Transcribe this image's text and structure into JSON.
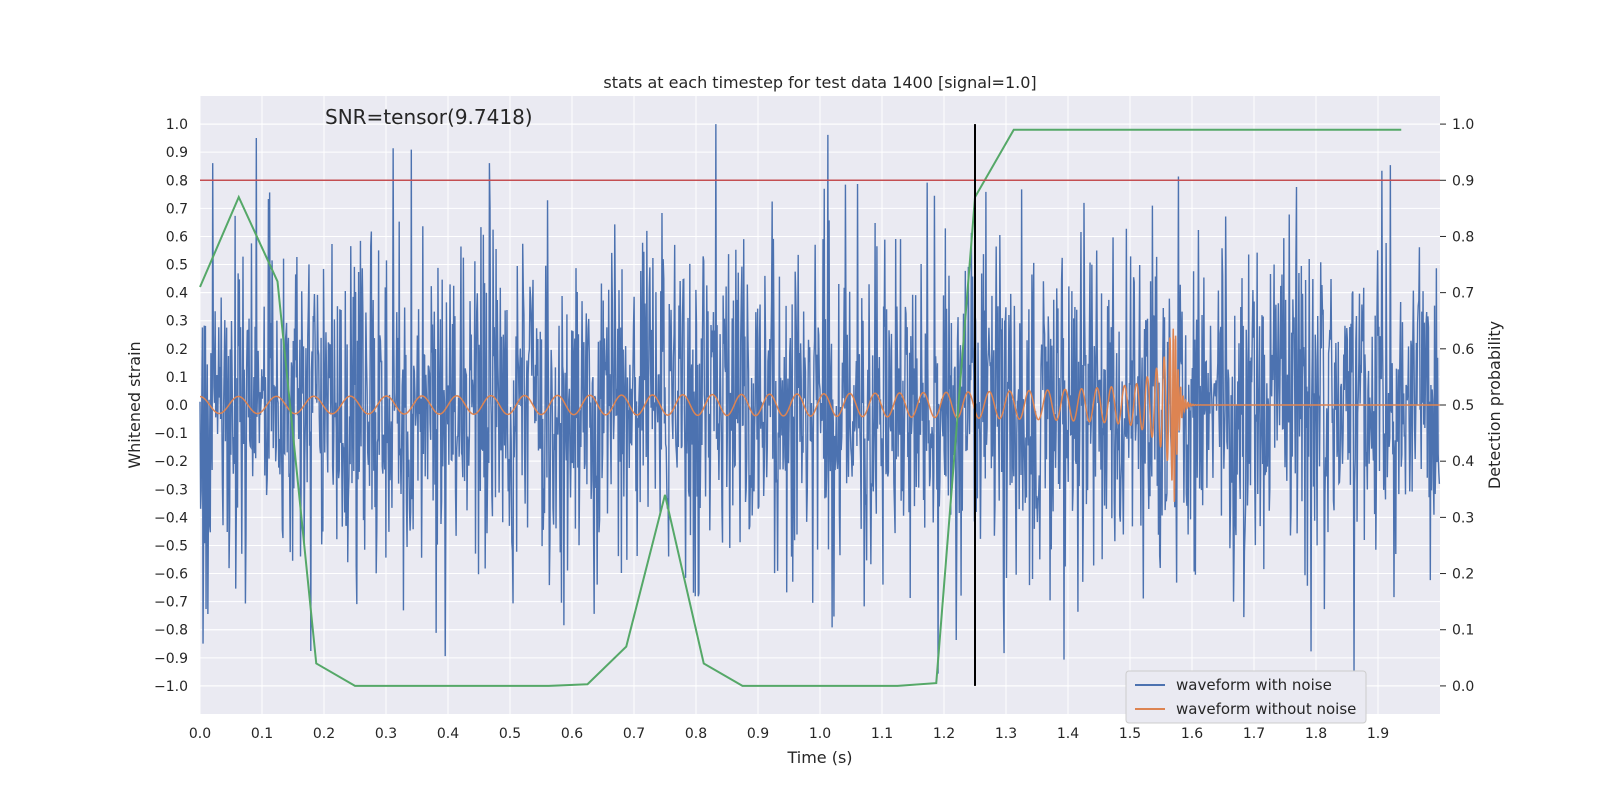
{
  "chart_data": {
    "type": "line",
    "title": "stats at each timestep for test data 1400 [signal=1.0]",
    "annotation": "SNR=tensor(9.7418)",
    "xlabel": "Time (s)",
    "ylabel_left": "Whitened strain",
    "ylabel_right": "Detection probability",
    "xlim": [
      0.0,
      2.0
    ],
    "ylim_left": [
      -1.1,
      1.1
    ],
    "ylim_right": [
      -0.05,
      1.05
    ],
    "xticks": [
      "0.0",
      "0.1",
      "0.2",
      "0.3",
      "0.4",
      "0.5",
      "0.6",
      "0.7",
      "0.8",
      "0.9",
      "1.0",
      "1.1",
      "1.2",
      "1.3",
      "1.4",
      "1.5",
      "1.6",
      "1.7",
      "1.8",
      "1.9"
    ],
    "yticks_left": [
      "1.0",
      "0.9",
      "0.8",
      "0.7",
      "0.6",
      "0.5",
      "0.4",
      "0.3",
      "0.2",
      "0.1",
      "0.0",
      "−0.1",
      "−0.2",
      "−0.3",
      "−0.4",
      "−0.5",
      "−0.6",
      "−0.7",
      "−0.8",
      "−0.9",
      "−1.0"
    ],
    "yticks_right": [
      "1.0",
      "0.9",
      "0.8",
      "0.7",
      "0.6",
      "0.5",
      "0.4",
      "0.3",
      "0.2",
      "0.1",
      "0.0"
    ],
    "grid": true,
    "legend_position": "lower-right",
    "threshold": {
      "value": 0.9,
      "axis": "right",
      "color": "#c44e52"
    },
    "marker_time": {
      "value": 1.25,
      "color": "#000000"
    },
    "series": [
      {
        "name": "waveform with noise",
        "axis": "left",
        "color": "#4c72b0",
        "generator": "gaussian-noise",
        "sample_rate": 1024,
        "std": 0.3,
        "range": [
          -1.0,
          1.0
        ]
      },
      {
        "name": "waveform without noise",
        "axis": "left",
        "color": "#dd8452",
        "generator": "chirp",
        "merger_time": 1.57,
        "peak_amplitude": 0.45,
        "start_amplitude": 0.03,
        "start_frequency_hz": 16
      },
      {
        "name": "",
        "axis": "right",
        "color": "#55a868",
        "x": [
          0.0,
          0.0625,
          0.125,
          0.1875,
          0.25,
          0.3125,
          0.375,
          0.4375,
          0.5,
          0.5625,
          0.625,
          0.6875,
          0.75,
          0.8125,
          0.875,
          0.9375,
          1.0,
          1.0625,
          1.125,
          1.1875,
          1.25,
          1.3125,
          1.375,
          1.4375,
          1.5,
          1.5625,
          1.625,
          1.6875,
          1.75,
          1.8125,
          1.875,
          1.9375
        ],
        "y": [
          0.71,
          0.87,
          0.72,
          0.04,
          0.0,
          0.0,
          0.0,
          0.0,
          0.0,
          0.0,
          0.003,
          0.07,
          0.34,
          0.04,
          0.0,
          0.0,
          0.0,
          0.0,
          0.0,
          0.005,
          0.87,
          0.99,
          0.99,
          0.99,
          0.99,
          0.99,
          0.99,
          0.99,
          0.99,
          0.99,
          0.99,
          0.99
        ]
      }
    ]
  }
}
